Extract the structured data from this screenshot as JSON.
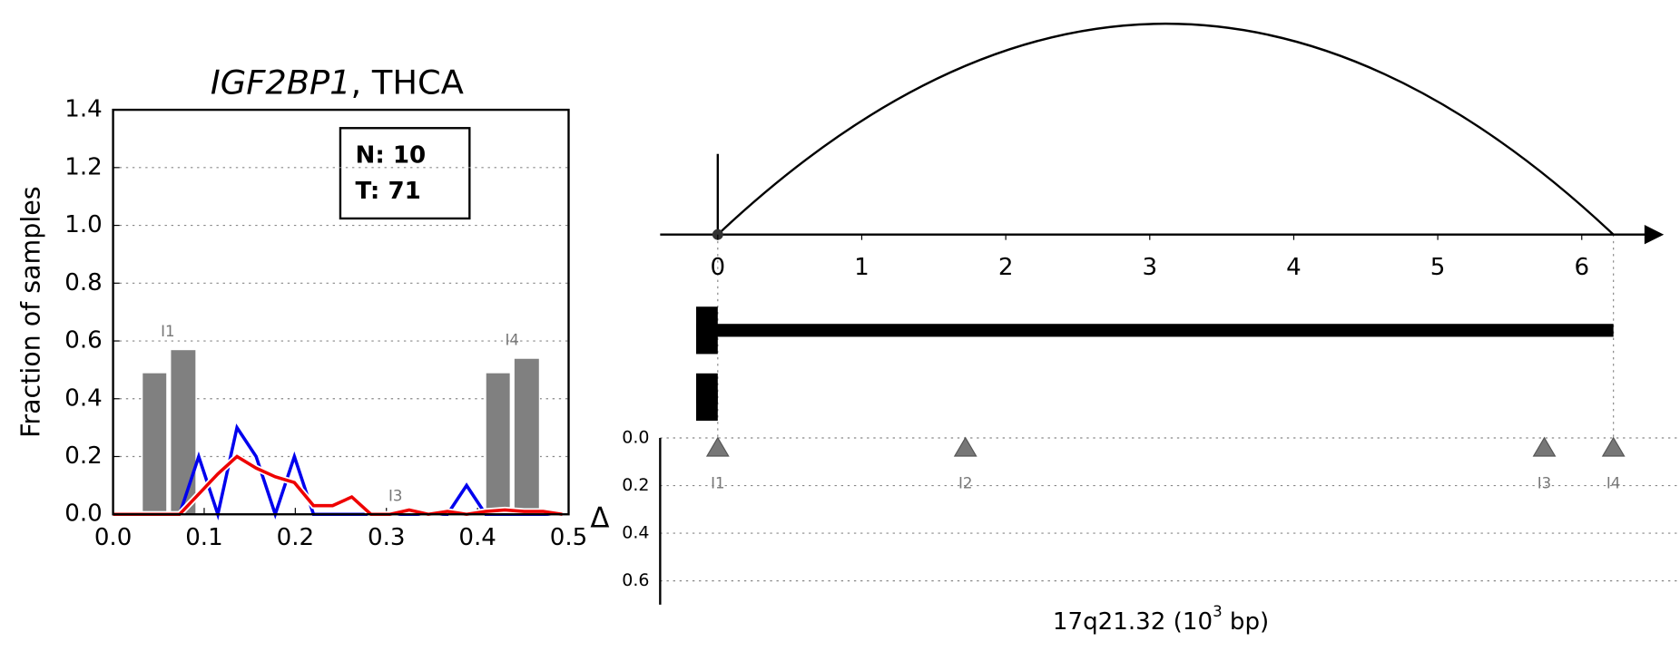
{
  "chart_data": [
    {
      "type": "line",
      "title": [
        "IGF2BP1",
        ", THCA"
      ],
      "ylabel": "Fraction of samples",
      "xlim": [
        0,
        0.5
      ],
      "xticks": [
        {
          "value": 0,
          "label": "0.0"
        },
        0.1,
        0.2,
        0.3,
        0.4,
        0.5
      ],
      "ylim": [
        0,
        1.4
      ],
      "yticks": [
        {
          "value": 0,
          "label": "0.0"
        },
        0.2,
        0.4,
        0.6,
        0.8,
        {
          "value": 1,
          "label": "1.0"
        },
        1.2,
        1.4
      ],
      "grid": true,
      "annotations": [
        "N: 10",
        "T: 71"
      ],
      "x": [
        0,
        0.031,
        0.052,
        0.073,
        0.094,
        0.115,
        0.136,
        0.157,
        0.178,
        0.199,
        0.22,
        0.241,
        0.262,
        0.283,
        0.304,
        0.325,
        0.346,
        0.367,
        0.388,
        0.409,
        0.43,
        0.451,
        0.472,
        0.493
      ],
      "series": [
        {
          "color": "#0000ee",
          "values": [
            0,
            0,
            0,
            0,
            0.2,
            0,
            0.3,
            0.2,
            0,
            0.2,
            0,
            0,
            0,
            0,
            0,
            0,
            0,
            0,
            0.1,
            0,
            0,
            0,
            0,
            0
          ]
        },
        {
          "color": "#ee0000",
          "values": [
            0,
            0,
            0,
            0,
            0.07,
            0.14,
            0.2,
            0.16,
            0.13,
            0.11,
            0.03,
            0.03,
            0.06,
            0,
            0,
            0.015,
            0,
            0.01,
            0,
            0.01,
            0.015,
            0.01,
            0.01,
            0
          ]
        }
      ],
      "bars": {
        "color": "#808080",
        "edges": [
          [
            0.032,
            0.059
          ],
          [
            0.063,
            0.091
          ],
          [
            0.409,
            0.436
          ],
          [
            0.44,
            0.468
          ]
        ],
        "values": [
          0.49,
          0.57,
          0.49,
          0.54
        ]
      },
      "region_labels": [
        {
          "label": "I1",
          "x": 0.06,
          "y": 0.63
        },
        {
          "label": "I3",
          "x": 0.31,
          "y": 0.06
        },
        {
          "label": "I4",
          "x": 0.438,
          "y": 0.6
        }
      ]
    },
    {
      "type": "arc",
      "xlabel": [
        "17q21.32 (10",
        "3",
        " bp)"
      ],
      "ylabel": "Δ",
      "xlim": [
        -0.4,
        6.57
      ],
      "xticks": [
        0,
        1,
        2,
        3,
        4,
        5,
        6
      ],
      "ylim": [
        0,
        0.7
      ],
      "yticks": [
        {
          "value": 0,
          "label": "0.0"
        },
        0.2,
        0.4,
        0.6
      ],
      "arc": {
        "start": 0,
        "end": 6.22
      },
      "transcripts": [
        {
          "start": -0.15,
          "end": 6.22,
          "exons": [
            [
              -0.15,
              0
            ]
          ]
        },
        {
          "start": -0.15,
          "end": 0,
          "exons": [
            [
              -0.15,
              0
            ]
          ]
        }
      ],
      "markers": [
        {
          "label": "I1",
          "x": 0,
          "delta": 0.04
        },
        {
          "label": "I2",
          "x": 1.72,
          "delta": 0.04
        },
        {
          "label": "I3",
          "x": 5.74,
          "delta": 0.04
        },
        {
          "label": "I4",
          "x": 6.22,
          "delta": 0.04
        }
      ]
    }
  ]
}
